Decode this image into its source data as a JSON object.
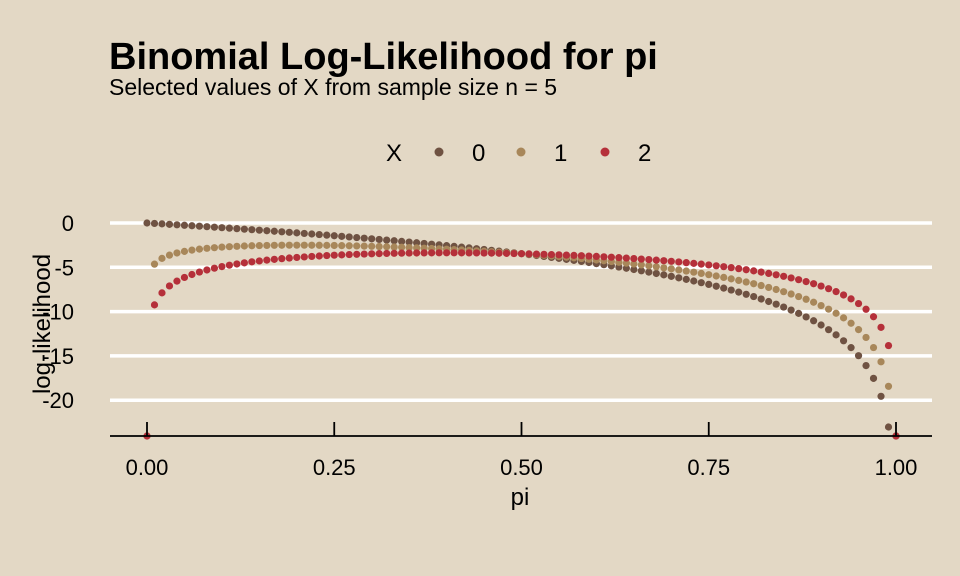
{
  "chart_data": {
    "type": "scatter",
    "title": "Binomial Log-Likelihood for pi",
    "subtitle": "Selected values of X from sample size n = 5",
    "xlabel": "pi",
    "ylabel": "log-likelihood",
    "n": 5,
    "xlim": [
      0,
      1
    ],
    "x_ticks": [
      0,
      0.25,
      0.5,
      0.75,
      1
    ],
    "x_tick_labels": [
      "0.00",
      "0.25",
      "0.50",
      "0.75",
      "1.00"
    ],
    "y_ticks": [
      0,
      -5,
      -10,
      -15,
      -20
    ],
    "y_tick_labels": [
      "0",
      "-5",
      "-10",
      "-15",
      "-20"
    ],
    "grid": "horizontal major, white",
    "legend": {
      "title": "X",
      "position": "top",
      "items": [
        "0",
        "1",
        "2"
      ]
    },
    "series": [
      {
        "name": "0",
        "color": "#6f5242",
        "x_value": 0
      },
      {
        "name": "1",
        "color": "#a8875a",
        "x_value": 1
      },
      {
        "name": "2",
        "color": "#b5303a",
        "x_value": 2
      }
    ],
    "x_grid": {
      "from": 0,
      "to": 1,
      "step": 0.01
    },
    "log_likelihood_formula": "X*ln(pi) + (n - X)*ln(1 - pi)"
  }
}
